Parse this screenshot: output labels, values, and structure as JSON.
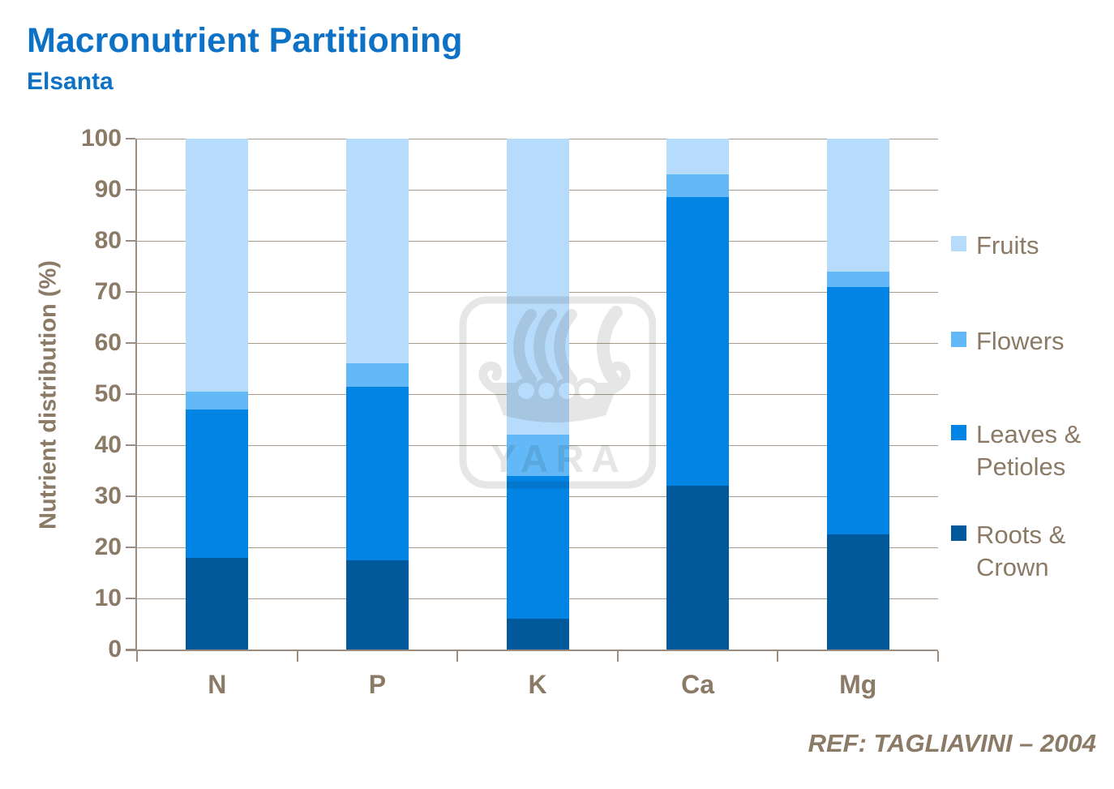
{
  "title": "Macronutrient Partitioning",
  "subtitle": "Elsanta",
  "reference": "REF: TAGLIAVINI – 2004",
  "watermark_text": "YARA",
  "colors": {
    "title_blue": "#0d72c6",
    "axis_text": "#8a7a66",
    "grid": "#a79b8e",
    "axis_line": "#9a8d7f",
    "fruits": "#b7dbfa",
    "flowers": "#63b9f8",
    "leaves": "#0284e4",
    "roots": "#01589a",
    "watermark_gray": "#e6e6e6"
  },
  "chart_data": {
    "type": "bar",
    "stacked": true,
    "title": "Macronutrient Partitioning",
    "subtitle": "Elsanta",
    "categories": [
      "N",
      "P",
      "K",
      "Ca",
      "Mg"
    ],
    "series": [
      {
        "name": "Roots & Crown",
        "color": "#01589a",
        "values": [
          18,
          17.5,
          6,
          32,
          22.5
        ]
      },
      {
        "name": "Leaves & Petioles",
        "color": "#0284e4",
        "values": [
          29,
          34,
          28,
          56.5,
          48.5
        ]
      },
      {
        "name": "Flowers",
        "color": "#63b9f8",
        "values": [
          3.5,
          4.5,
          8,
          4.5,
          3
        ]
      },
      {
        "name": "Fruits",
        "color": "#b7dbfa",
        "values": [
          49.5,
          44,
          58,
          7,
          26
        ]
      }
    ],
    "xlabel": "",
    "ylabel": "Nutrient distribution (%)",
    "ylim": [
      0,
      100
    ],
    "yticks": [
      0,
      10,
      20,
      30,
      40,
      50,
      60,
      70,
      80,
      90,
      100
    ],
    "grid": true,
    "legend_position": "right"
  },
  "legend": {
    "items": [
      {
        "label": "Fruits",
        "display": "Fruits",
        "color": "#b7dbfa"
      },
      {
        "label": "Flowers",
        "display": "Flowers",
        "color": "#63b9f8"
      },
      {
        "label": "Leaves & Petioles",
        "display": "Leaves &\nPetioles",
        "color": "#0284e4"
      },
      {
        "label": "Roots & Crown",
        "display": "Roots &\nCrown",
        "color": "#01589a"
      }
    ]
  }
}
